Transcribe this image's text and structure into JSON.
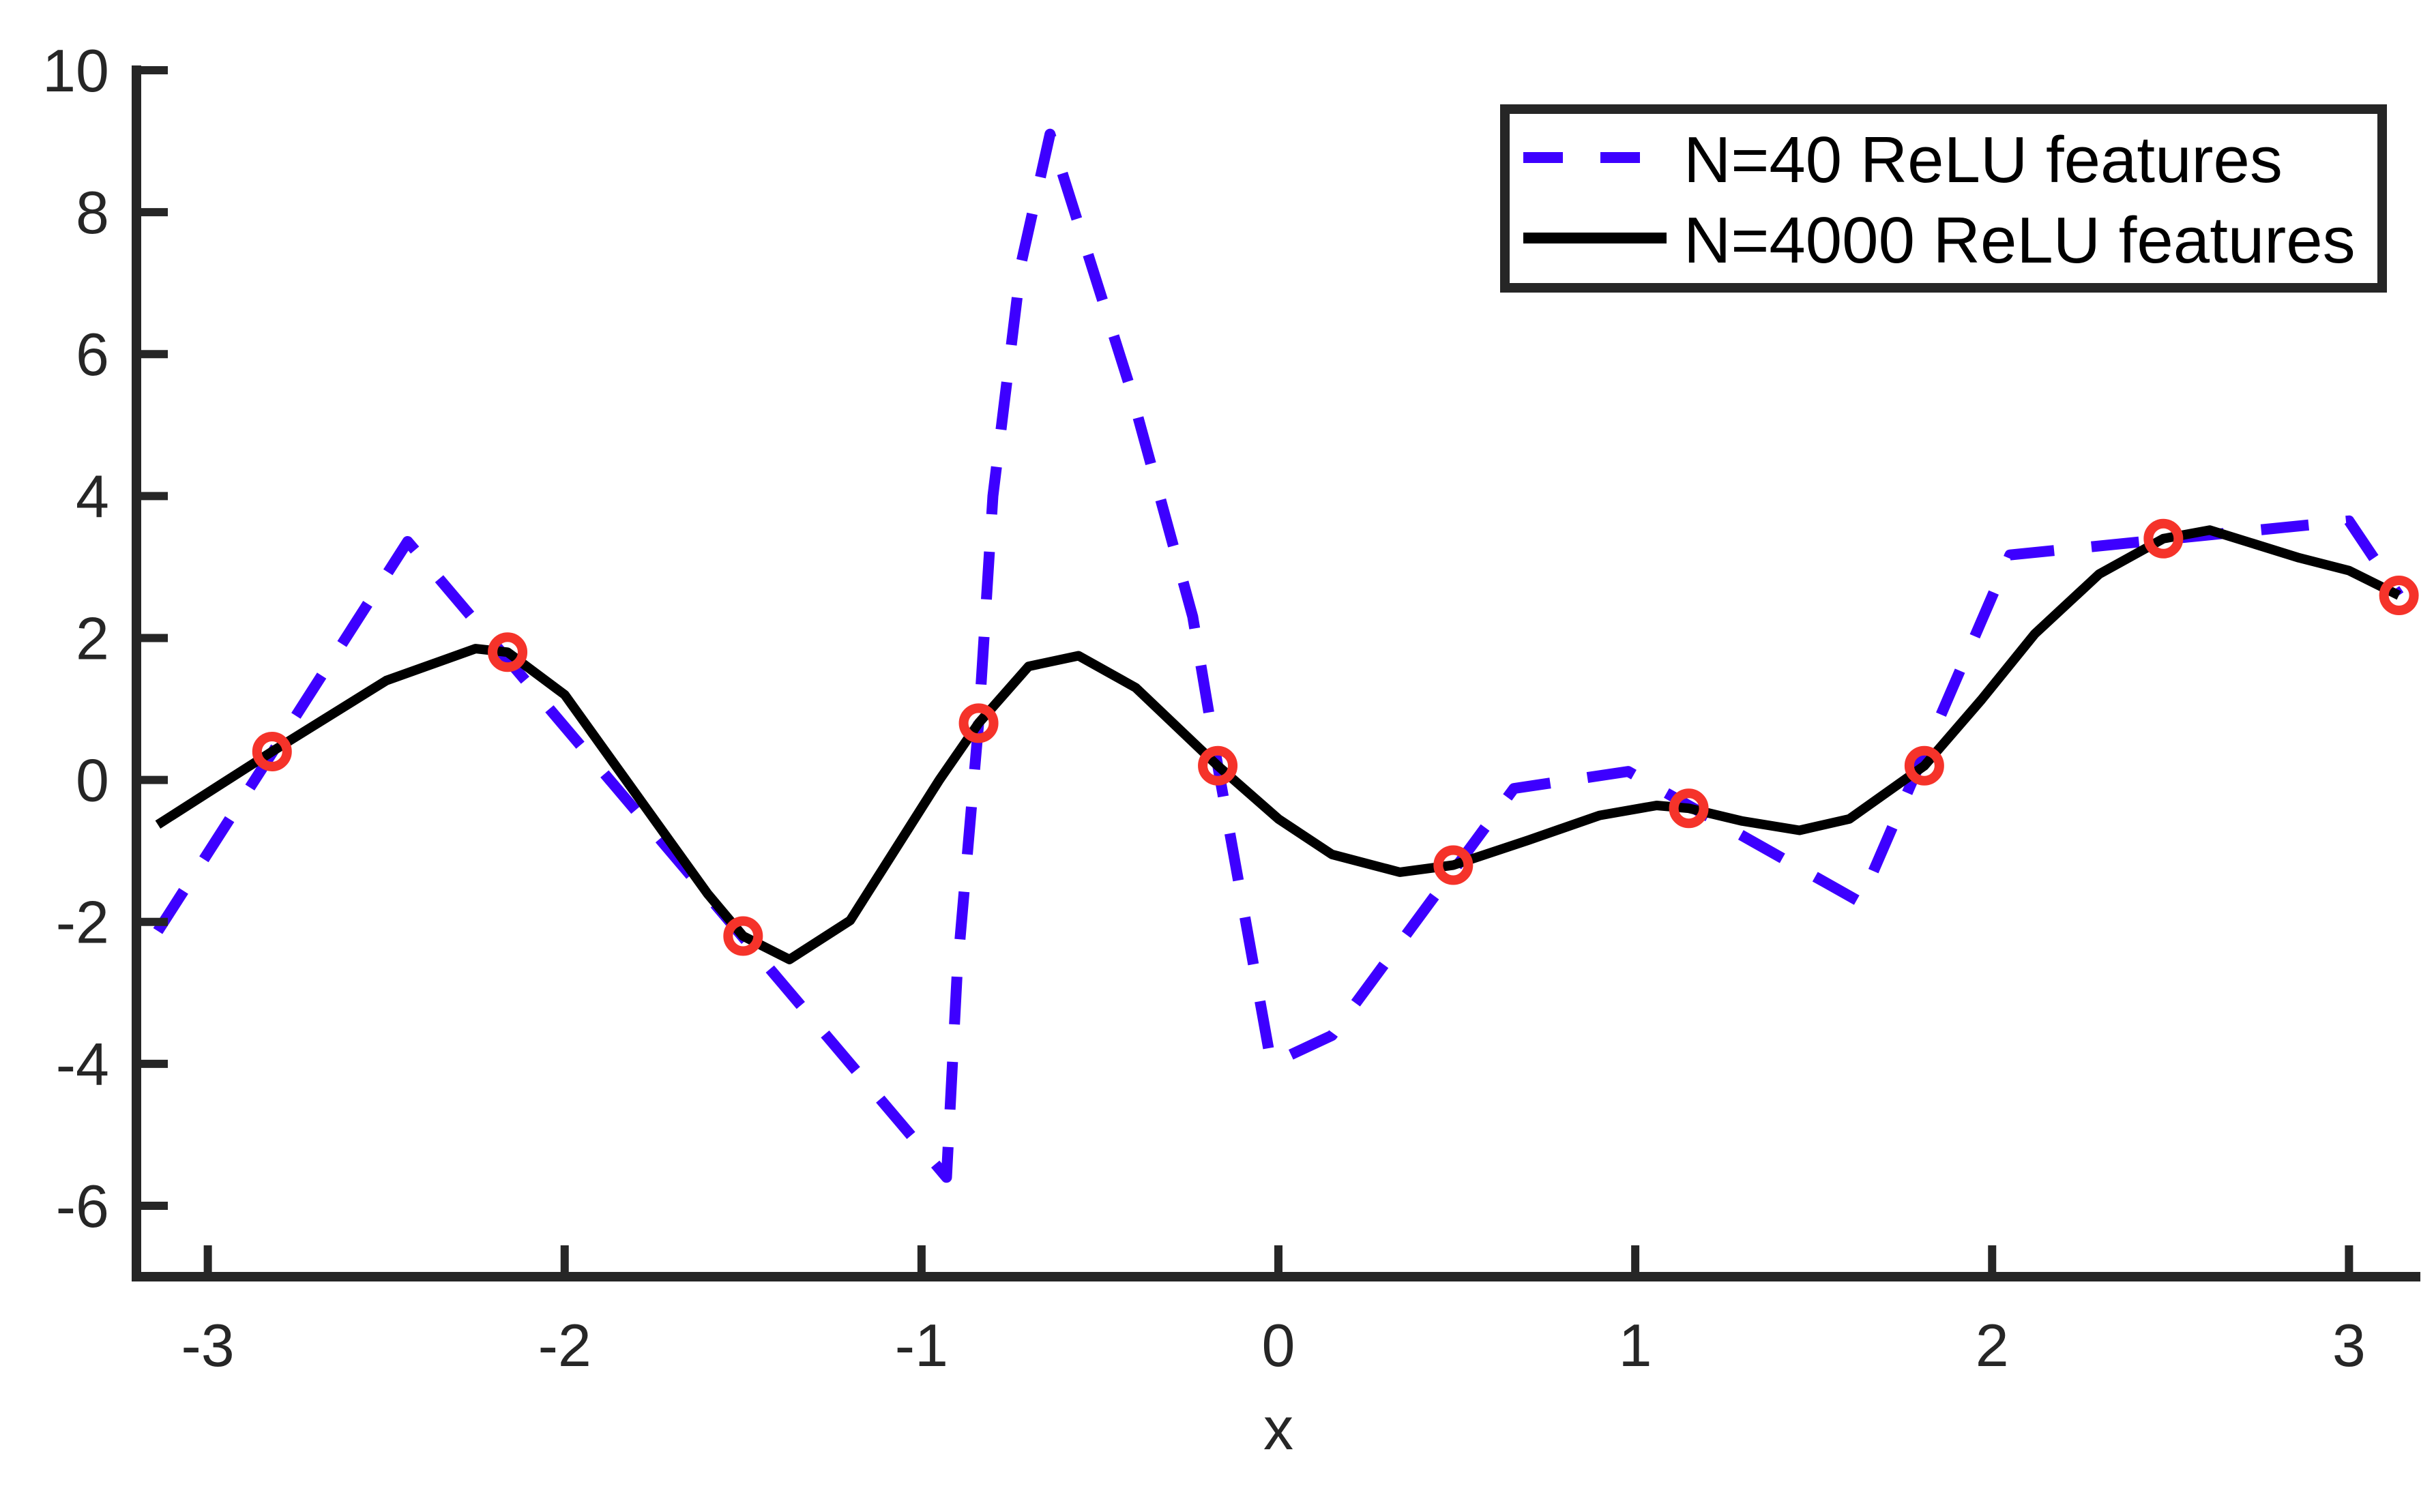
{
  "chart_data": {
    "type": "line",
    "title": "",
    "xlabel": "x",
    "ylabel": "",
    "xlim": [
      -3.2,
      3.2
    ],
    "ylim": [
      -7,
      10
    ],
    "grid": false,
    "legend_position": "upper-right",
    "x_ticks": [
      -3,
      -2,
      -1,
      0,
      1,
      2,
      3
    ],
    "x_tick_labels": [
      "-3",
      "-2",
      "-1",
      "0",
      "1",
      "2",
      "3"
    ],
    "y_ticks": [
      -6,
      -4,
      -2,
      0,
      2,
      4,
      6,
      8,
      10
    ],
    "y_tick_labels": [
      "-6",
      "-4",
      "-2",
      "0",
      "2",
      "4",
      "6",
      "8",
      "10"
    ],
    "series": [
      {
        "name": "N=40 ReLU features",
        "style": "dashed",
        "color": "#3d00ff",
        "x": [
          -3.14,
          -2.44,
          -0.93,
          -0.9,
          -0.84,
          -0.8,
          -0.72,
          -0.64,
          -0.42,
          -0.24,
          -0.17,
          -0.02,
          0.15,
          0.66,
          0.98,
          1.63,
          2.05,
          3.0,
          3.14
        ],
        "y": [
          -2.13,
          3.36,
          -5.6,
          -2.7,
          0.8,
          4.0,
          7.3,
          9.1,
          5.6,
          2.3,
          0.2,
          -4.0,
          -3.6,
          -0.12,
          0.12,
          -1.72,
          3.17,
          3.65,
          2.6
        ]
      },
      {
        "name": "N=4000 ReLU features",
        "style": "solid",
        "color": "#000000",
        "x": [
          -3.14,
          -2.82,
          -2.5,
          -2.25,
          -2.16,
          -2.0,
          -1.8,
          -1.6,
          -1.5,
          -1.37,
          -1.2,
          -0.95,
          -0.84,
          -0.7,
          -0.56,
          -0.4,
          -0.17,
          0.0,
          0.15,
          0.34,
          0.49,
          0.7,
          0.9,
          1.06,
          1.15,
          1.3,
          1.46,
          1.6,
          1.81,
          1.97,
          2.12,
          2.3,
          2.48,
          2.61,
          2.86,
          3.0,
          3.14
        ],
        "y": [
          -0.63,
          0.4,
          1.4,
          1.85,
          1.8,
          1.2,
          -0.2,
          -1.6,
          -2.2,
          -2.53,
          -1.98,
          0.0,
          0.8,
          1.6,
          1.75,
          1.3,
          0.2,
          -0.55,
          -1.05,
          -1.3,
          -1.2,
          -0.85,
          -0.5,
          -0.36,
          -0.4,
          -0.58,
          -0.71,
          -0.55,
          0.2,
          1.13,
          2.06,
          2.9,
          3.4,
          3.52,
          3.13,
          2.95,
          2.6
        ]
      },
      {
        "name": "training points",
        "style": "markers",
        "marker": "circle-open",
        "color": "#f5332a",
        "x": [
          -2.82,
          -2.16,
          -1.5,
          -0.84,
          -0.17,
          0.49,
          1.15,
          1.81,
          2.48,
          3.14
        ],
        "y": [
          0.4,
          1.8,
          -2.2,
          0.8,
          0.2,
          -1.2,
          -0.4,
          0.2,
          3.4,
          2.6
        ]
      }
    ]
  },
  "legend": {
    "items": [
      {
        "label": "N=40 ReLU features",
        "style": "dashed",
        "color": "#3d00ff"
      },
      {
        "label": "N=4000 ReLU features",
        "style": "solid",
        "color": "#000000"
      }
    ]
  },
  "colors": {
    "axis": "#262626",
    "background": "#ffffff"
  }
}
